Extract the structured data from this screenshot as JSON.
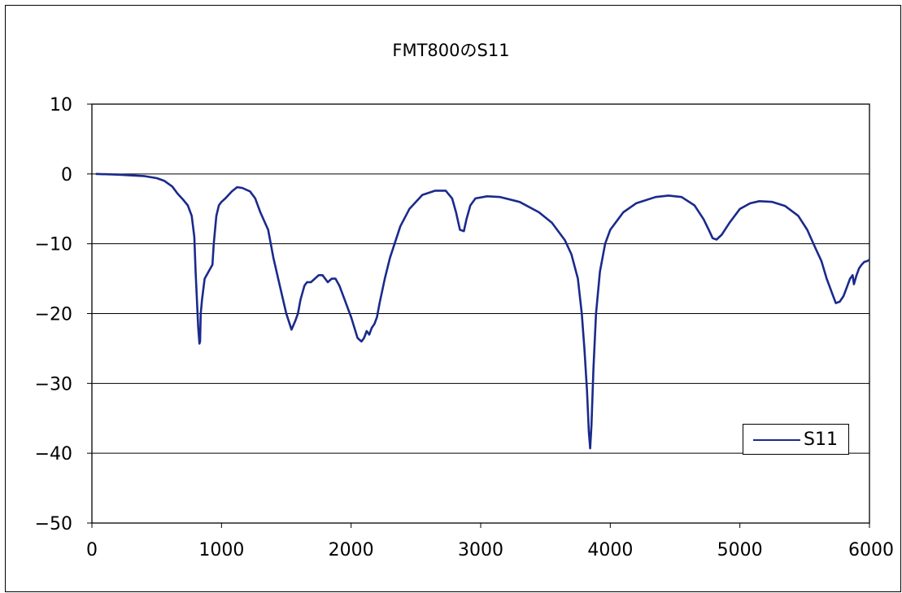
{
  "chart_data": {
    "type": "line",
    "title": "FMT800のS11",
    "xlabel": "",
    "ylabel": "",
    "xlim": [
      0,
      6000
    ],
    "ylim": [
      -50,
      10
    ],
    "x_ticks": [
      "0",
      "1000",
      "2000",
      "3000",
      "4000",
      "5000",
      "6000"
    ],
    "y_ticks": [
      "10",
      "0",
      "−10",
      "−20",
      "−30",
      "−40",
      "−50"
    ],
    "grid": "horizontal",
    "legend_position": "bottom-right",
    "series": [
      {
        "name": "S11",
        "color": "#1a2a8c",
        "x": [
          30,
          200,
          300,
          400,
          500,
          560,
          620,
          660,
          700,
          740,
          770,
          790,
          800,
          810,
          820,
          830,
          835,
          840,
          850,
          870,
          900,
          930,
          940,
          960,
          980,
          1000,
          1030,
          1080,
          1120,
          1160,
          1220,
          1260,
          1300,
          1360,
          1400,
          1450,
          1500,
          1540,
          1570,
          1590,
          1610,
          1640,
          1660,
          1690,
          1720,
          1750,
          1780,
          1800,
          1820,
          1850,
          1880,
          1910,
          1950,
          2000,
          2050,
          2080,
          2100,
          2120,
          2140,
          2160,
          2180,
          2200,
          2220,
          2260,
          2300,
          2380,
          2450,
          2550,
          2650,
          2730,
          2780,
          2810,
          2840,
          2870,
          2890,
          2920,
          2960,
          3050,
          3150,
          3300,
          3450,
          3550,
          3650,
          3700,
          3750,
          3780,
          3800,
          3820,
          3835,
          3845,
          3855,
          3870,
          3890,
          3920,
          3960,
          4000,
          4100,
          4200,
          4350,
          4450,
          4550,
          4650,
          4720,
          4760,
          4790,
          4820,
          4860,
          4920,
          5000,
          5080,
          5150,
          5250,
          5350,
          5450,
          5520,
          5580,
          5630,
          5670,
          5710,
          5740,
          5770,
          5800,
          5830,
          5850,
          5870,
          5880,
          5900,
          5920,
          5940,
          5960,
          5980,
          6000
        ],
        "y": [
          0,
          -0.1,
          -0.2,
          -0.3,
          -0.6,
          -1,
          -1.8,
          -2.8,
          -3.6,
          -4.5,
          -6,
          -9,
          -14,
          -18,
          -22,
          -24.3,
          -24,
          -20,
          -18,
          -15,
          -14,
          -13,
          -10,
          -6,
          -4.5,
          -4,
          -3.5,
          -2.5,
          -1.9,
          -2,
          -2.5,
          -3.5,
          -5.5,
          -8,
          -12,
          -16,
          -20,
          -22.3,
          -21,
          -20,
          -18,
          -16,
          -15.5,
          -15.5,
          -15,
          -14.5,
          -14.5,
          -15,
          -15.5,
          -15,
          -15,
          -16,
          -18,
          -20.5,
          -23.5,
          -24,
          -23.5,
          -22.5,
          -23,
          -22,
          -21.5,
          -20.5,
          -18.5,
          -15,
          -12,
          -7.5,
          -5,
          -3,
          -2.4,
          -2.4,
          -3.5,
          -5.5,
          -8,
          -8.2,
          -6.5,
          -4.5,
          -3.5,
          -3.2,
          -3.3,
          -4,
          -5.5,
          -7,
          -9.5,
          -11.5,
          -15,
          -20,
          -25,
          -31,
          -37,
          -39.3,
          -36,
          -28,
          -20,
          -14,
          -10,
          -8,
          -5.5,
          -4.2,
          -3.3,
          -3.1,
          -3.3,
          -4.5,
          -6.5,
          -8,
          -9.2,
          -9.4,
          -8.7,
          -7,
          -5,
          -4.2,
          -3.9,
          -4,
          -4.6,
          -6,
          -8,
          -10.5,
          -12.5,
          -15,
          -17,
          -18.5,
          -18.3,
          -17.5,
          -16,
          -15,
          -14.5,
          -15.8,
          -14.5,
          -13.5,
          -13,
          -12.6,
          -12.5,
          -12.3
        ]
      }
    ]
  }
}
